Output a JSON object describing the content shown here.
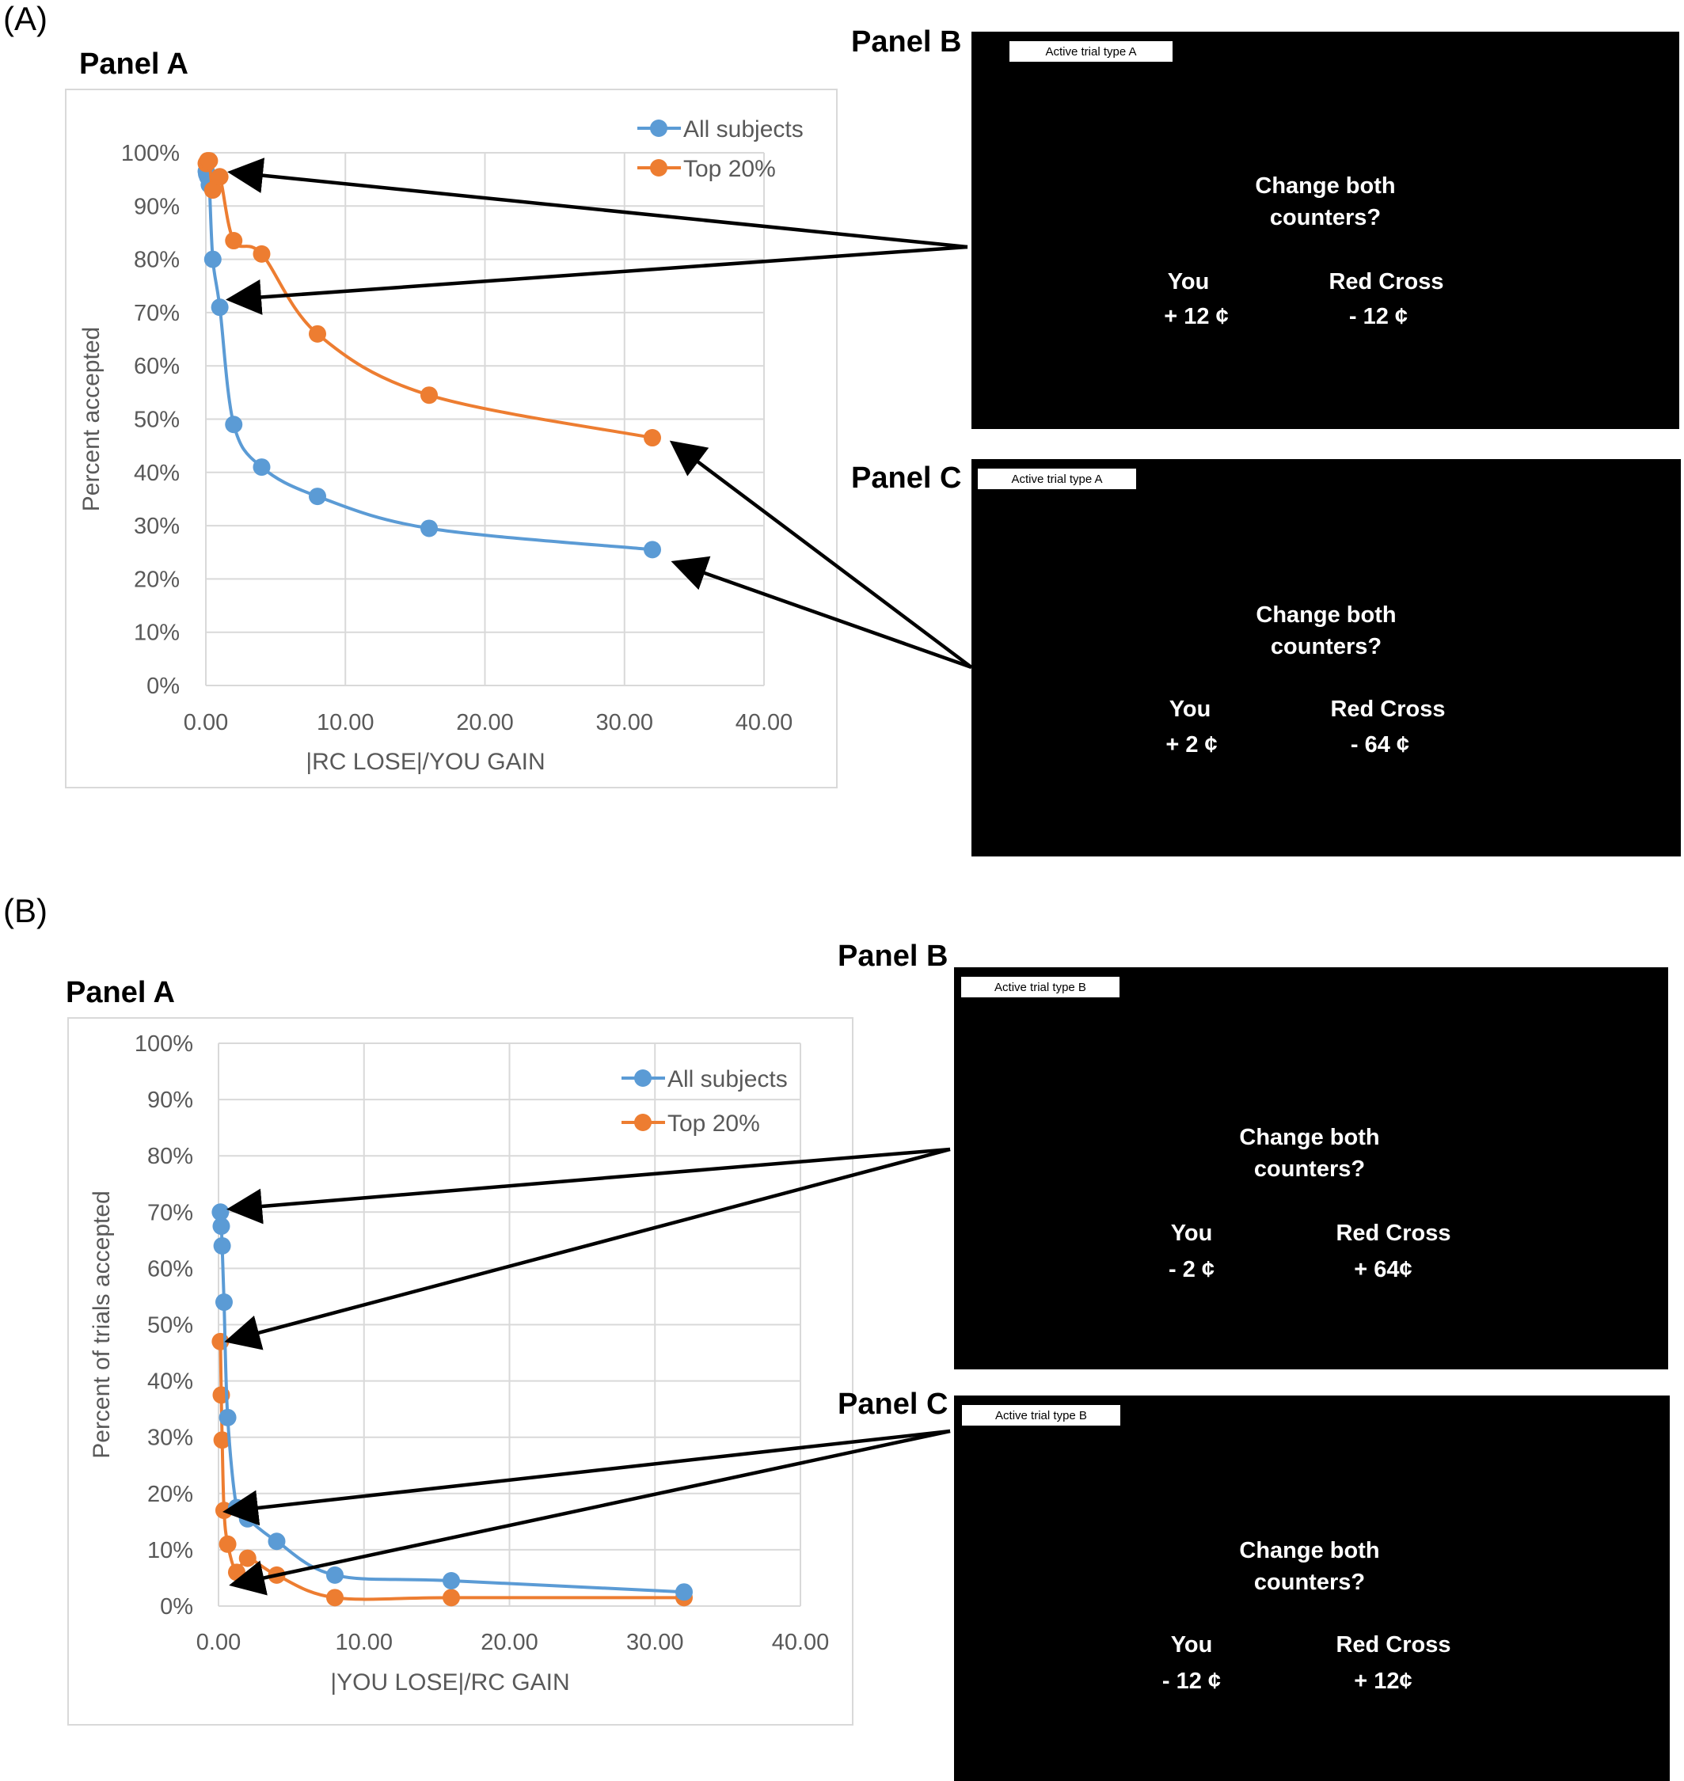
{
  "figure_a": {
    "label": "(A)",
    "panel_a_title": "Panel A",
    "panel_b_title": "Panel B",
    "panel_c_title": "Panel C",
    "screen_b": {
      "badge": "Active trial type A",
      "question_line1": "Change both",
      "question_line2": "counters?",
      "you_label": "You",
      "you_value": "+ 12 ¢",
      "rc_label": "Red Cross",
      "rc_value": "- 12 ¢"
    },
    "screen_c": {
      "badge": "Active trial type A",
      "question_line1": "Change both",
      "question_line2": "counters?",
      "you_label": "You",
      "you_value": "+ 2 ¢",
      "rc_label": "Red Cross",
      "rc_value": "- 64 ¢"
    }
  },
  "figure_b": {
    "label": "(B)",
    "panel_a_title": "Panel A",
    "panel_b_title": "Panel B",
    "panel_c_title": "Panel C",
    "screen_b": {
      "badge": "Active trial type B",
      "question_line1": "Change both",
      "question_line2": "counters?",
      "you_label": "You",
      "you_value": "- 2 ¢",
      "rc_label": "Red Cross",
      "rc_value": "+ 64¢"
    },
    "screen_c": {
      "badge": "Active trial type B",
      "question_line1": "Change both",
      "question_line2": "counters?",
      "you_label": "You",
      "you_value": "- 12 ¢",
      "rc_label": "Red Cross",
      "rc_value": "+ 12¢"
    }
  },
  "colors": {
    "all_subjects": "#5b9bd5",
    "top_20": "#ed7d31",
    "grid": "#d9d9d9",
    "screen": "#000000"
  },
  "chart_data": [
    {
      "type": "line",
      "xlabel": "|RC LOSE|/YOU GAIN",
      "ylabel": "Percent accepted",
      "xlim": [
        0,
        40
      ],
      "ylim": [
        0,
        100
      ],
      "x_ticks": [
        "0.00",
        "10.00",
        "20.00",
        "30.00",
        "40.00"
      ],
      "y_ticks": [
        "0%",
        "10%",
        "20%",
        "30%",
        "40%",
        "50%",
        "60%",
        "70%",
        "80%",
        "90%",
        "100%"
      ],
      "legend": "top-right",
      "grid": true,
      "series": [
        {
          "name": "All subjects",
          "x": [
            0.03,
            0.06,
            0.13,
            0.25,
            0.5,
            1,
            2,
            4,
            8,
            16,
            32
          ],
          "y": [
            96.5,
            96,
            95.5,
            94,
            80,
            71,
            49,
            41,
            35.5,
            29.5,
            25.5
          ]
        },
        {
          "name": "Top 20%",
          "x": [
            0.03,
            0.06,
            0.13,
            0.25,
            0.5,
            1,
            2,
            4,
            8,
            16,
            32
          ],
          "y": [
            98,
            98,
            98.5,
            98.5,
            93,
            95.5,
            83.5,
            81,
            66,
            54.5,
            46.5
          ]
        }
      ]
    },
    {
      "type": "line",
      "xlabel": "|YOU LOSE|/RC GAIN",
      "ylabel": "Percent of trials accepted",
      "xlim": [
        0,
        40
      ],
      "ylim": [
        0,
        100
      ],
      "x_ticks": [
        "0.00",
        "10.00",
        "20.00",
        "30.00",
        "40.00"
      ],
      "y_ticks": [
        "0%",
        "10%",
        "20%",
        "30%",
        "40%",
        "50%",
        "60%",
        "70%",
        "80%",
        "90%",
        "100%"
      ],
      "legend": "top-right",
      "grid": true,
      "series": [
        {
          "name": "All subjects",
          "x": [
            0.13,
            0.19,
            0.25,
            0.38,
            0.63,
            1.25,
            2,
            4,
            8,
            16,
            32
          ],
          "y": [
            70,
            67.5,
            64,
            54,
            33.5,
            17.5,
            15.5,
            11.5,
            5.5,
            4.5,
            2.5
          ]
        },
        {
          "name": "Top 20%",
          "x": [
            0.13,
            0.19,
            0.25,
            0.38,
            0.63,
            1.25,
            2,
            4,
            8,
            16,
            32
          ],
          "y": [
            47,
            37.5,
            29.5,
            17,
            11,
            6,
            8.5,
            5.5,
            1.5,
            1.5,
            1.5
          ]
        }
      ]
    }
  ]
}
